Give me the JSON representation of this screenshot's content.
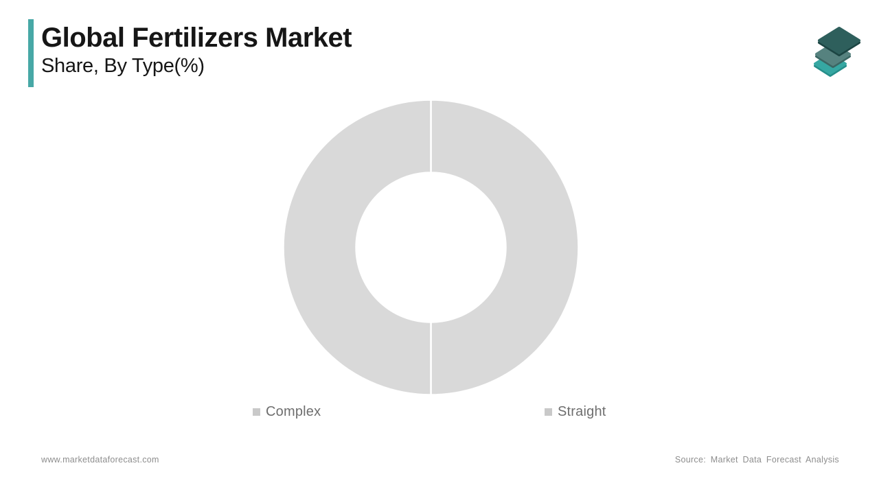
{
  "header": {
    "title": "Global Fertilizers Market",
    "subtitle": "Share, By Type(%)",
    "accent_color": "#47a8a6"
  },
  "logo": {
    "name": "market-data-forecast-logo",
    "layer_colors": [
      "#36a7a2",
      "#56827f",
      "#2e5f5c"
    ],
    "layer_edge_colors": [
      "#268e8a",
      "#3b6663",
      "#1c4543"
    ]
  },
  "chart_data": {
    "type": "pie",
    "donut": true,
    "title": "Global Fertilizers Market Share, By Type(%)",
    "categories": [
      "Complex",
      "Straight"
    ],
    "values": [
      50,
      50
    ],
    "unit": "%",
    "slice_colors": [
      "#d9d9d9",
      "#d9d9d9"
    ],
    "slice_border_color": "#ffffff",
    "outer_radius": 215,
    "inner_radius": 109,
    "start_angle_deg": -90,
    "legend_position": "bottom"
  },
  "legend": {
    "items": [
      {
        "label": "Complex",
        "color": "#c9c9c9"
      },
      {
        "label": "Straight",
        "color": "#c9c9c9"
      }
    ]
  },
  "footer": {
    "website": "www.marketdataforecast.com",
    "source": "Source: Market Data Forecast Analysis"
  }
}
